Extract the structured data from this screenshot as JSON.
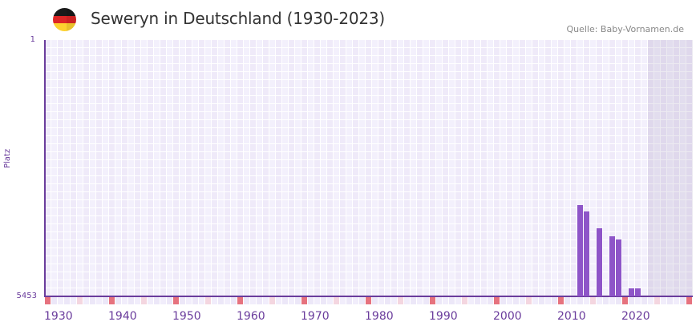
{
  "header": {
    "title": "Seweryn in Deutschland (1930-2023)",
    "source": "Quelle: Baby-Vornamen.de",
    "flag_colors": [
      "#1a1a1a",
      "#dd2525",
      "#fdd22f"
    ]
  },
  "colors": {
    "bar": "#8e55c8",
    "axis": "#6a3c9c",
    "decade_marker": "#e6727e",
    "half_decade_marker": "#f4d6e0"
  },
  "chart_data": {
    "type": "bar",
    "title": "Seweryn in Deutschland (1930-2023)",
    "xlabel": "",
    "ylabel": "Platz",
    "y_inverted": true,
    "ylim": [
      5453,
      1
    ],
    "y_ticks": [
      "1",
      "5453"
    ],
    "x_range": [
      1930,
      2030
    ],
    "x_ticks": [
      "1930",
      "1940",
      "1950",
      "1960",
      "1970",
      "1980",
      "1990",
      "2000",
      "2010",
      "2020"
    ],
    "shaded_future_from": 2024,
    "grid": true,
    "legend": null,
    "categories": [
      2013,
      2014,
      2016,
      2018,
      2019,
      2021,
      2022
    ],
    "values": [
      3510,
      3650,
      4000,
      4175,
      4245,
      5283,
      5283
    ]
  },
  "axis": {
    "y_top_label": "1",
    "y_bottom_label": "5453",
    "y_title": "Platz"
  }
}
